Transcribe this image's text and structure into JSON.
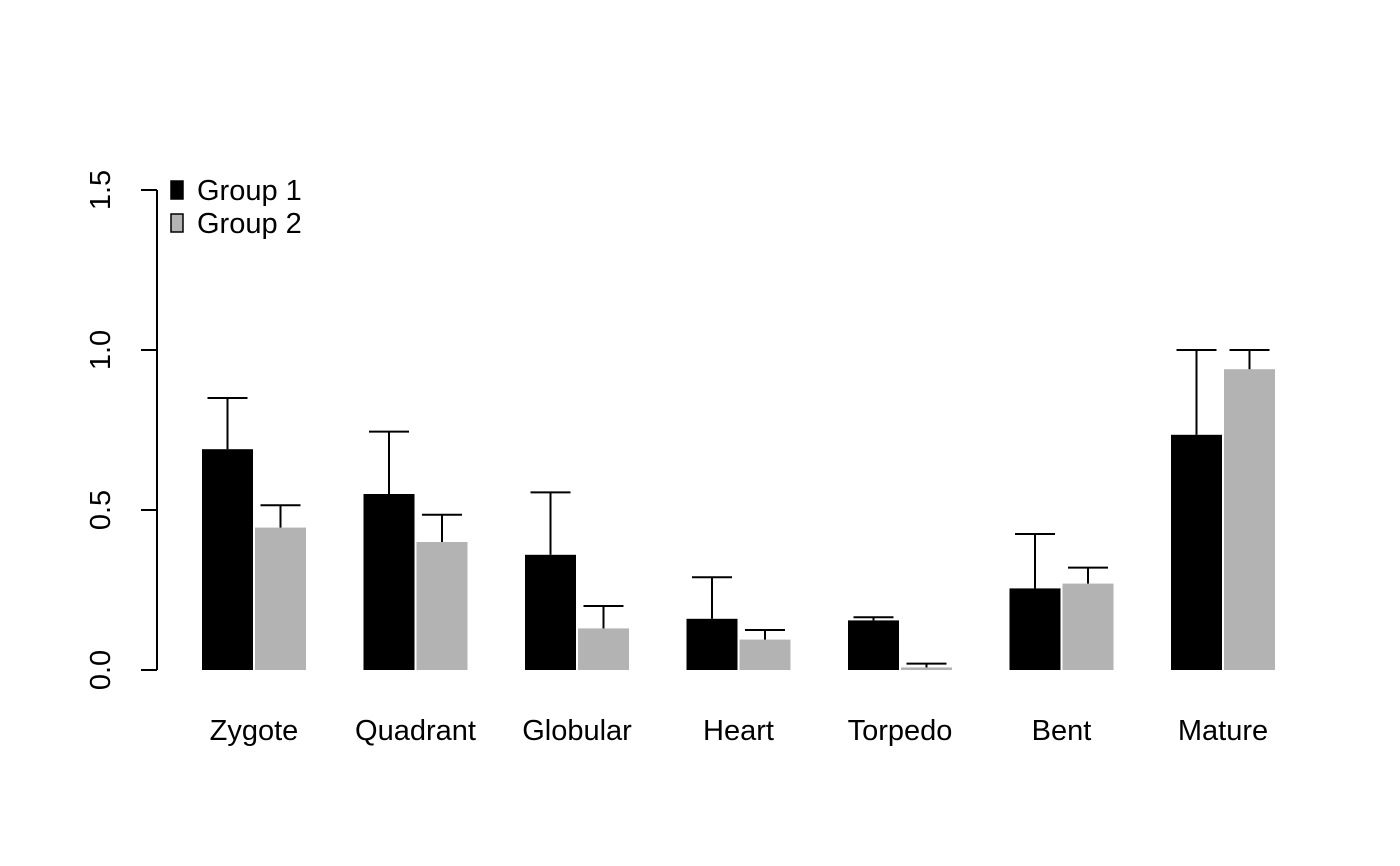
{
  "chart_data": {
    "type": "bar",
    "categories": [
      "Zygote",
      "Quadrant",
      "Globular",
      "Heart",
      "Torpedo",
      "Bent",
      "Mature"
    ],
    "series": [
      {
        "name": "Group 1",
        "color": "#000000",
        "values": [
          0.69,
          0.55,
          0.36,
          0.16,
          0.155,
          0.255,
          0.735
        ],
        "error_upper": [
          0.85,
          0.745,
          0.555,
          0.29,
          0.165,
          0.425,
          1.0
        ]
      },
      {
        "name": "Group 2",
        "color": "#b3b3b3",
        "values": [
          0.445,
          0.4,
          0.13,
          0.095,
          0.008,
          0.27,
          0.94
        ],
        "error_upper": [
          0.515,
          0.485,
          0.2,
          0.125,
          0.02,
          0.32,
          1.0
        ]
      }
    ],
    "ylim": [
      0,
      1.5
    ],
    "yticks": [
      "0.0",
      "0.5",
      "1.0",
      "1.5"
    ],
    "xlabel": "",
    "ylabel": "",
    "grid": false,
    "legend_position": "top-left"
  }
}
